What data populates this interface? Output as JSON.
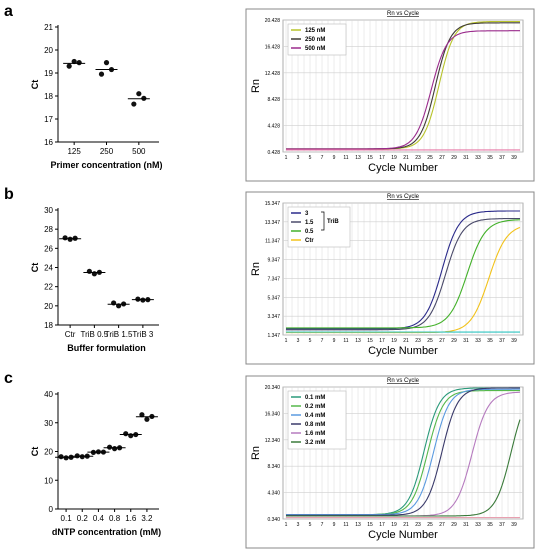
{
  "panels": [
    {
      "label": "a",
      "scatter": {
        "type": "scatter",
        "ylabel": "Ct",
        "xlabel": "Primer concentration (nM)",
        "categories": [
          "125",
          "250",
          "500"
        ],
        "ylim": [
          16,
          21
        ],
        "yticks": [
          16,
          17,
          18,
          19,
          20,
          21
        ],
        "points": [
          [
            19.3,
            19.5,
            19.45
          ],
          [
            18.95,
            19.45,
            19.15
          ],
          [
            17.65,
            18.1,
            17.9
          ]
        ],
        "means": [
          19.42,
          19.15,
          17.88
        ]
      },
      "amplification": {
        "type": "line",
        "title": "Rn vs Cycle",
        "ylabel": "Rn",
        "xlabel": "Cycle Number",
        "yticks": [
          "0.428",
          "4.428",
          "8.428",
          "12.428",
          "16.428",
          "20.428"
        ],
        "yrange": [
          0.428,
          20.428
        ],
        "series": [
          {
            "name": "125 nM",
            "color": "#b8c42a",
            "base": 0.9,
            "plateau": 20.2,
            "mid": 26.5,
            "slope": 1.25
          },
          {
            "name": "250 nM",
            "color": "#3f3b36",
            "base": 0.9,
            "plateau": 20.0,
            "mid": 25.9,
            "slope": 1.25
          },
          {
            "name": "500 nM",
            "color": "#9a2b8c",
            "base": 0.9,
            "plateau": 18.8,
            "mid": 25.2,
            "slope": 1.3
          },
          {
            "color": "#e87aa8",
            "base": 0.75,
            "plateau": 0.75,
            "mid": 30,
            "slope": 1
          }
        ]
      }
    },
    {
      "label": "b",
      "scatter": {
        "type": "scatter",
        "ylabel": "Ct",
        "xlabel": "Buffer formulation",
        "categories": [
          "Ctr",
          "TriB 0.5",
          "TriB 1.5",
          "TriB 3"
        ],
        "ylim": [
          18,
          30
        ],
        "yticks": [
          18,
          20,
          22,
          24,
          26,
          28,
          30
        ],
        "points": [
          [
            27.1,
            26.95,
            27.05
          ],
          [
            23.6,
            23.35,
            23.5
          ],
          [
            20.3,
            20.0,
            20.2
          ],
          [
            20.7,
            20.6,
            20.65
          ]
        ],
        "means": [
          27.0,
          23.48,
          20.17,
          20.65
        ]
      },
      "amplification": {
        "type": "line",
        "title": "Rn vs Cycle",
        "ylabel": "Rn",
        "xlabel": "Cycle Number",
        "yticks": [
          "1.347",
          "3.347",
          "5.347",
          "7.347",
          "9.347",
          "11.347",
          "13.347",
          "15.347"
        ],
        "yrange": [
          1.347,
          15.347
        ],
        "legend_group": "TriB",
        "series": [
          {
            "name": "3",
            "color": "#2a2a8a",
            "base": 2.0,
            "plateau": 14.5,
            "mid": 27.0,
            "slope": 1.4
          },
          {
            "name": "1.5",
            "color": "#4a4a6a",
            "base": 1.9,
            "plateau": 13.7,
            "mid": 27.6,
            "slope": 1.4
          },
          {
            "name": "0.5",
            "color": "#43b12a",
            "base": 2.1,
            "plateau": 13.6,
            "mid": 31.2,
            "slope": 1.5
          },
          {
            "name": "Ctr",
            "color": "#f2c21a",
            "base": 1.6,
            "plateau": 13.1,
            "mid": 34.8,
            "slope": 1.5
          },
          {
            "color": "#2fc4c0",
            "base": 1.65,
            "plateau": 1.65,
            "mid": 30,
            "slope": 1
          }
        ]
      }
    },
    {
      "label": "c",
      "scatter": {
        "type": "scatter",
        "ylabel": "Ct",
        "xlabel": "dNTP concentration (mM)",
        "categories": [
          "0.1",
          "0.2",
          "0.4",
          "0.8",
          "1.6",
          "3.2"
        ],
        "ylim": [
          0,
          40
        ],
        "yticks": [
          0,
          10,
          20,
          30,
          40
        ],
        "points": [
          [
            18.2,
            17.8,
            18.0
          ],
          [
            18.5,
            18.2,
            18.4
          ],
          [
            19.7,
            19.9,
            19.8
          ],
          [
            21.5,
            21.0,
            21.3
          ],
          [
            26.2,
            25.5,
            25.9
          ],
          [
            32.8,
            31.2,
            32.2
          ]
        ],
        "means": [
          18.0,
          18.35,
          19.8,
          21.3,
          25.9,
          32.1
        ]
      },
      "amplification": {
        "type": "line",
        "title": "Rn vs Cycle",
        "ylabel": "Rn",
        "xlabel": "Cycle Number",
        "yticks": [
          "0.340",
          "4.340",
          "8.340",
          "12.340",
          "16.340",
          "20.340"
        ],
        "yrange": [
          0.34,
          20.34
        ],
        "series": [
          {
            "name": "0.1 mM",
            "color": "#2a9a7a",
            "base": 1.0,
            "plateau": 20.2,
            "mid": 24.0,
            "slope": 1.3
          },
          {
            "name": "0.2 mM",
            "color": "#55b84a",
            "base": 1.0,
            "plateau": 19.8,
            "mid": 24.6,
            "slope": 1.3
          },
          {
            "name": "0.4 mM",
            "color": "#5a9ae0",
            "base": 1.0,
            "plateau": 20.0,
            "mid": 25.6,
            "slope": 1.3
          },
          {
            "name": "0.8 mM",
            "color": "#3a3a6a",
            "base": 0.9,
            "plateau": 20.2,
            "mid": 27.0,
            "slope": 1.3
          },
          {
            "name": "1.6 mM",
            "color": "#b67bbf",
            "base": 0.8,
            "plateau": 19.6,
            "mid": 32.0,
            "slope": 1.35
          },
          {
            "name": "3.2 mM",
            "color": "#3a7a3a",
            "base": 0.8,
            "plateau": 20.0,
            "mid": 38.5,
            "slope": 1.3
          },
          {
            "color": "#e8a0b0",
            "base": 0.55,
            "plateau": 0.55,
            "mid": 30,
            "slope": 1
          }
        ]
      }
    }
  ],
  "cycle_ticks": [
    "1",
    "3",
    "5",
    "7",
    "9",
    "11",
    "13",
    "15",
    "17",
    "19",
    "21",
    "23",
    "25",
    "27",
    "29",
    "31",
    "33",
    "35",
    "37",
    "39"
  ]
}
